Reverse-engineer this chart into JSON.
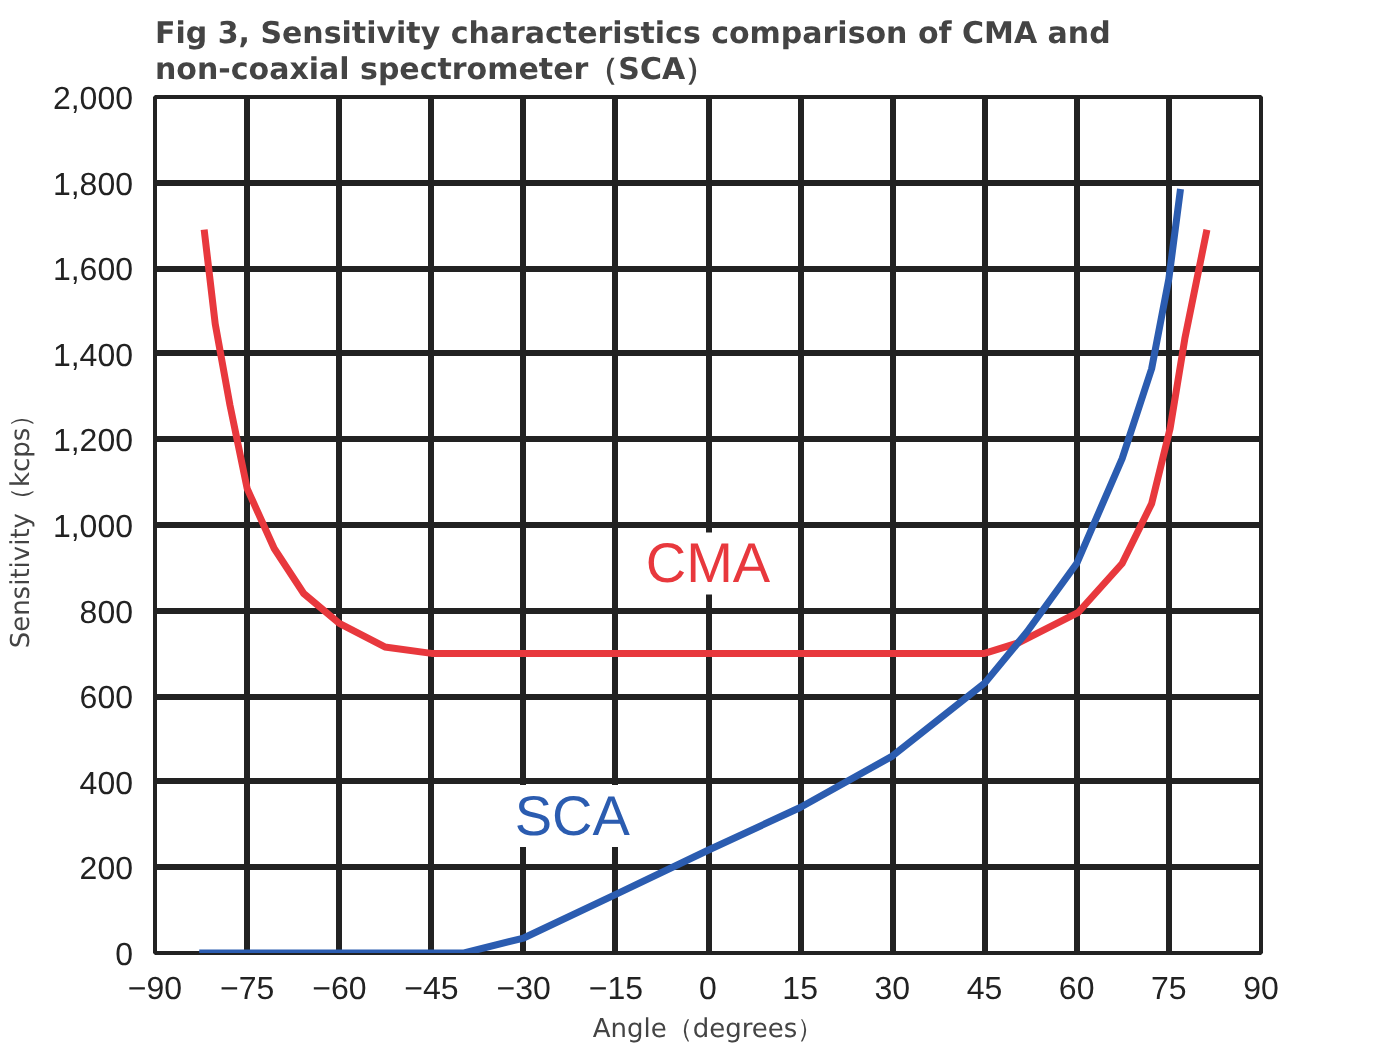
{
  "chart_data": {
    "type": "line",
    "title": "Fig 3, Sensitivity characteristics comparison of CMA and\nnon-coaxial spectrometer（SCA）",
    "xlabel": "Angle（degrees）",
    "ylabel": "Sensitivity（kcps）",
    "xlim": [
      -90,
      90
    ],
    "xticks": [
      -90,
      -75,
      -60,
      -45,
      -30,
      -15,
      0,
      15,
      30,
      45,
      60,
      75,
      90
    ],
    "ylim": [
      0,
      2000
    ],
    "yticks": [
      0,
      200,
      400,
      600,
      800,
      {
        "value": 1000,
        "label": "1,000"
      },
      {
        "value": 1200,
        "label": "1,200"
      },
      {
        "value": 1400,
        "label": "1,400"
      },
      {
        "value": 1600,
        "label": "1,600"
      },
      {
        "value": 1800,
        "label": "1,800"
      },
      {
        "value": 2000,
        "label": "2,000"
      }
    ],
    "grid": true,
    "marker": "none",
    "line_style": "solid",
    "series": [
      {
        "name": "CMA",
        "color": "#e8383d",
        "x": [
          -82,
          -80.2,
          -77.8,
          -75,
          -70.6,
          -65.8,
          -60,
          -52.6,
          -45,
          -30,
          -15,
          0,
          15,
          30,
          45,
          50.6,
          60.2,
          67.4,
          72.2,
          75.2,
          77.6,
          81.2
        ],
        "values": [
          1690,
          1470,
          1280,
          1085,
          945,
          840,
          770,
          715,
          700,
          700,
          700,
          700,
          700,
          700,
          700,
          725,
          795,
          910,
          1050,
          1225,
          1435,
          1690
        ]
      },
      {
        "name": "SCA",
        "color": "#2b5cb0",
        "x": [
          -82.8,
          -60,
          -39.7,
          -30,
          -15,
          0,
          15,
          30,
          45,
          51.9,
          60,
          67.4,
          72.2,
          75,
          76.9
        ],
        "values": [
          0,
          0,
          0,
          35,
          137,
          240,
          340,
          460,
          630,
          750,
          910,
          1155,
          1365,
          1575,
          1785
        ]
      }
    ]
  }
}
